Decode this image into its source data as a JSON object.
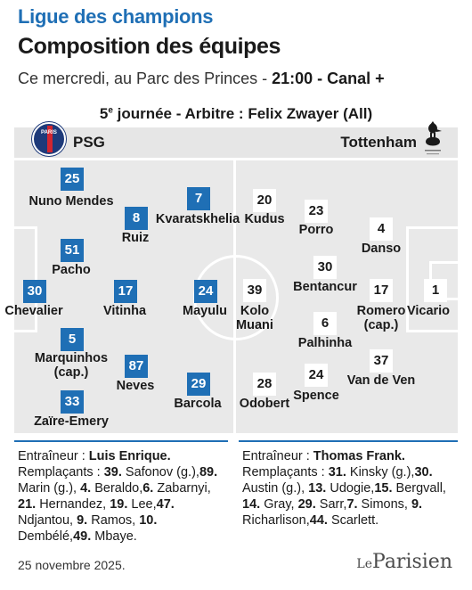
{
  "header": {
    "kicker": "Ligue des champions",
    "title": "Composition des équipes",
    "intro_prefix": "Ce mercredi, au Parc des Princes - ",
    "intro_time": "21:00 - Canal +",
    "round_number": "5",
    "round_suffix": "e",
    "round_rest": " journée - Arbitre : Felix Zwayer (All)"
  },
  "teams": {
    "home": "PSG",
    "away": "Tottenham",
    "home_logo_text": "PARIS"
  },
  "home_players": [
    {
      "number": "25",
      "name": "Nuno Mendes"
    },
    {
      "number": "8",
      "name": "Ruiz"
    },
    {
      "number": "7",
      "name": "Kvaratskhelia"
    },
    {
      "number": "51",
      "name": "Pacho"
    },
    {
      "number": "30",
      "name": "Chevalier"
    },
    {
      "number": "17",
      "name": "Vitinha"
    },
    {
      "number": "24",
      "name": "Mayulu"
    },
    {
      "number": "5",
      "name": "Marquinhos\n(cap.)"
    },
    {
      "number": "87",
      "name": "Neves"
    },
    {
      "number": "29",
      "name": "Barcola"
    },
    {
      "number": "33",
      "name": "Zaïre-Emery"
    }
  ],
  "away_players": [
    {
      "number": "20",
      "name": "Kudus"
    },
    {
      "number": "23",
      "name": "Porro"
    },
    {
      "number": "4",
      "name": "Danso"
    },
    {
      "number": "39",
      "name": "Kolo\nMuani"
    },
    {
      "number": "30",
      "name": "Bentancur"
    },
    {
      "number": "17",
      "name": "Romero\n(cap.)"
    },
    {
      "number": "1",
      "name": "Vicario"
    },
    {
      "number": "6",
      "name": "Palhinha"
    },
    {
      "number": "28",
      "name": "Odobert"
    },
    {
      "number": "24",
      "name": "Spence"
    },
    {
      "number": "37",
      "name": "Van de Ven"
    }
  ],
  "coaches": {
    "home_label": "Entraîneur : ",
    "home_name": "Luis Enrique.",
    "away_label": "Entraîneur : ",
    "away_name": "Thomas Frank.",
    "subs_label": "Remplaçants : "
  },
  "home_subs": [
    {
      "n": "39.",
      "p": " Safonov (g.),"
    },
    {
      "n": "89.",
      "p": " Marin (g.), "
    },
    {
      "n": "4.",
      "p": " Beraldo,"
    },
    {
      "n": "6.",
      "p": " Zabarnyi, "
    },
    {
      "n": "21.",
      "p": " Hernandez, "
    },
    {
      "n": "19.",
      "p": " Lee,"
    },
    {
      "n": "47.",
      "p": " Ndjantou, "
    },
    {
      "n": "9.",
      "p": " Ramos, "
    },
    {
      "n": "10.",
      "p": " Dembélé,"
    },
    {
      "n": "49.",
      "p": " Mbaye."
    }
  ],
  "away_subs": [
    {
      "n": "31.",
      "p": " Kinsky (g.),"
    },
    {
      "n": "30.",
      "p": " Austin (g.), "
    },
    {
      "n": "13.",
      "p": " Udogie,"
    },
    {
      "n": "15.",
      "p": " Bergvall, "
    },
    {
      "n": "14.",
      "p": " Gray, "
    },
    {
      "n": "29.",
      "p": " Sarr,"
    },
    {
      "n": "7.",
      "p": " Simons, "
    },
    {
      "n": "9.",
      "p": " Richarlison,"
    },
    {
      "n": "44.",
      "p": " Scarlett."
    }
  ],
  "footer": {
    "date": "25 novembre 2025.",
    "brand_le": "Le",
    "brand_name": "Parisien"
  },
  "colors": {
    "accent": "#1f6fb5",
    "pitch": "#e9e9e9",
    "psg_navy": "#1e3a7a",
    "psg_red": "#d22630"
  }
}
